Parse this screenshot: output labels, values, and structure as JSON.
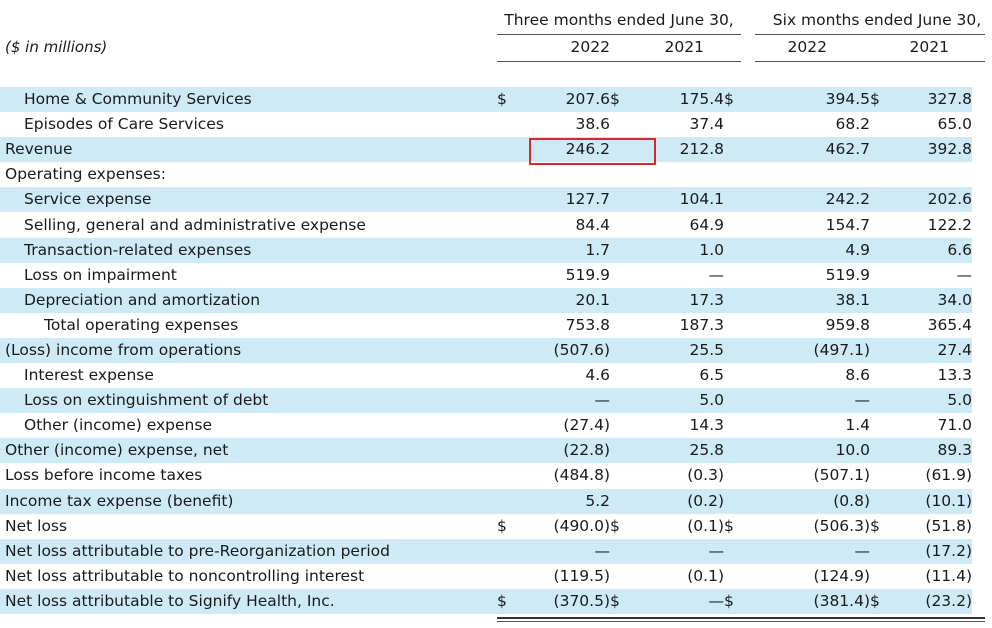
{
  "header": {
    "units": "($ in millions)",
    "three_months": "Three months ended June 30,",
    "six_months": "Six months ended June 30,",
    "years": [
      "2022",
      "2021",
      "2022",
      "2021"
    ]
  },
  "rows": [
    {
      "label": "Home & Community Services",
      "c1": "$",
      "v1": "207.6",
      "c2": "$",
      "v2": "175.4",
      "c3": "$",
      "v3": "394.5",
      "c4": "$",
      "v4": "327.8"
    },
    {
      "label": "Episodes of Care Services",
      "c1": "",
      "v1": "38.6",
      "c2": "",
      "v2": "37.4",
      "c3": "",
      "v3": "68.2",
      "c4": "",
      "v4": "65.0"
    },
    {
      "label": "Revenue",
      "c1": "",
      "v1": "246.2",
      "c2": "",
      "v2": "212.8",
      "c3": "",
      "v3": "462.7",
      "c4": "",
      "v4": "392.8"
    },
    {
      "label": "Operating expenses:",
      "c1": "",
      "v1": "",
      "c2": "",
      "v2": "",
      "c3": "",
      "v3": "",
      "c4": "",
      "v4": ""
    },
    {
      "label": "Service expense",
      "c1": "",
      "v1": "127.7",
      "c2": "",
      "v2": "104.1",
      "c3": "",
      "v3": "242.2",
      "c4": "",
      "v4": "202.6"
    },
    {
      "label": "Selling, general and administrative expense",
      "c1": "",
      "v1": "84.4",
      "c2": "",
      "v2": "64.9",
      "c3": "",
      "v3": "154.7",
      "c4": "",
      "v4": "122.2"
    },
    {
      "label": "Transaction-related expenses",
      "c1": "",
      "v1": "1.7",
      "c2": "",
      "v2": "1.0",
      "c3": "",
      "v3": "4.9",
      "c4": "",
      "v4": "6.6"
    },
    {
      "label": "Loss on impairment",
      "c1": "",
      "v1": "519.9",
      "c2": "",
      "v2": "—",
      "c3": "",
      "v3": "519.9",
      "c4": "",
      "v4": "—"
    },
    {
      "label": "Depreciation and amortization",
      "c1": "",
      "v1": "20.1",
      "c2": "",
      "v2": "17.3",
      "c3": "",
      "v3": "38.1",
      "c4": "",
      "v4": "34.0"
    },
    {
      "label": "Total operating expenses",
      "c1": "",
      "v1": "753.8",
      "c2": "",
      "v2": "187.3",
      "c3": "",
      "v3": "959.8",
      "c4": "",
      "v4": "365.4"
    },
    {
      "label": "(Loss) income from operations",
      "c1": "",
      "v1": "(507.6)",
      "c2": "",
      "v2": "25.5",
      "c3": "",
      "v3": "(497.1)",
      "c4": "",
      "v4": "27.4"
    },
    {
      "label": "Interest expense",
      "c1": "",
      "v1": "4.6",
      "c2": "",
      "v2": "6.5",
      "c3": "",
      "v3": "8.6",
      "c4": "",
      "v4": "13.3"
    },
    {
      "label": "Loss on extinguishment of debt",
      "c1": "",
      "v1": "—",
      "c2": "",
      "v2": "5.0",
      "c3": "",
      "v3": "—",
      "c4": "",
      "v4": "5.0"
    },
    {
      "label": "Other (income) expense",
      "c1": "",
      "v1": "(27.4)",
      "c2": "",
      "v2": "14.3",
      "c3": "",
      "v3": "1.4",
      "c4": "",
      "v4": "71.0"
    },
    {
      "label": "Other (income) expense, net",
      "c1": "",
      "v1": "(22.8)",
      "c2": "",
      "v2": "25.8",
      "c3": "",
      "v3": "10.0",
      "c4": "",
      "v4": "89.3"
    },
    {
      "label": "Loss before income taxes",
      "c1": "",
      "v1": "(484.8)",
      "c2": "",
      "v2": "(0.3)",
      "c3": "",
      "v3": "(507.1)",
      "c4": "",
      "v4": "(61.9)"
    },
    {
      "label": "Income tax expense (benefit)",
      "c1": "",
      "v1": "5.2",
      "c2": "",
      "v2": "(0.2)",
      "c3": "",
      "v3": "(0.8)",
      "c4": "",
      "v4": "(10.1)"
    },
    {
      "label": "Net loss",
      "c1": "$",
      "v1": "(490.0)",
      "c2": "$",
      "v2": "(0.1)",
      "c3": "$",
      "v3": "(506.3)",
      "c4": "$",
      "v4": "(51.8)"
    },
    {
      "label": "Net loss attributable to pre-Reorganization period",
      "c1": "",
      "v1": "—",
      "c2": "",
      "v2": "—",
      "c3": "",
      "v3": "—",
      "c4": "",
      "v4": "(17.2)"
    },
    {
      "label": "Net loss attributable to noncontrolling interest",
      "c1": "",
      "v1": "(119.5)",
      "c2": "",
      "v2": "(0.1)",
      "c3": "",
      "v3": "(124.9)",
      "c4": "",
      "v4": "(11.4)"
    },
    {
      "label": "Net loss attributable to Signify Health, Inc.",
      "c1": "$",
      "v1": "(370.5)",
      "c2": "$",
      "v2": "—",
      "c3": "$",
      "v3": "(381.4)",
      "c4": "$",
      "v4": "(23.2)"
    }
  ]
}
